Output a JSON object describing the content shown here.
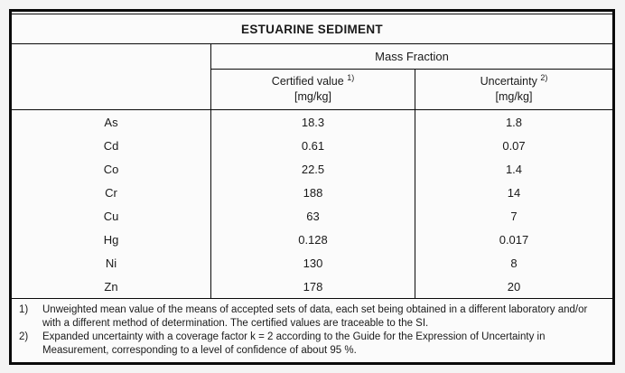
{
  "table": {
    "title": "ESTUARINE SEDIMENT",
    "group_header": "Mass Fraction",
    "columns": [
      {
        "label": "Certified value",
        "footnote_ref": "1)",
        "unit": "[mg/kg]"
      },
      {
        "label": "Uncertainty",
        "footnote_ref": "2)",
        "unit": "[mg/kg]"
      }
    ],
    "rows": [
      {
        "element": "As",
        "certified_value": "18.3",
        "uncertainty": "1.8"
      },
      {
        "element": "Cd",
        "certified_value": "0.61",
        "uncertainty": "0.07"
      },
      {
        "element": "Co",
        "certified_value": "22.5",
        "uncertainty": "1.4"
      },
      {
        "element": "Cr",
        "certified_value": "188",
        "uncertainty": "14"
      },
      {
        "element": "Cu",
        "certified_value": "63",
        "uncertainty": "7"
      },
      {
        "element": "Hg",
        "certified_value": "0.128",
        "uncertainty": "0.017"
      },
      {
        "element": "Ni",
        "certified_value": "130",
        "uncertainty": "8"
      },
      {
        "element": "Zn",
        "certified_value": "178",
        "uncertainty": "20"
      }
    ],
    "footnotes": [
      {
        "marker": "1)",
        "text": "Unweighted mean value of the means of accepted sets of data, each set being obtained in a different laboratory and/or with a different method of determination. The certified values are traceable to the SI."
      },
      {
        "marker": "2)",
        "text": "Expanded uncertainty with a coverage factor k = 2 according to the Guide for the Expression of Uncertainty in Measurement, corresponding to a level of confidence of about 95 %."
      }
    ]
  },
  "colors": {
    "border": "#0a0a0a",
    "page_background": "#f4f4f4",
    "table_background": "#fbfbfb",
    "text": "#1a1a1a"
  }
}
